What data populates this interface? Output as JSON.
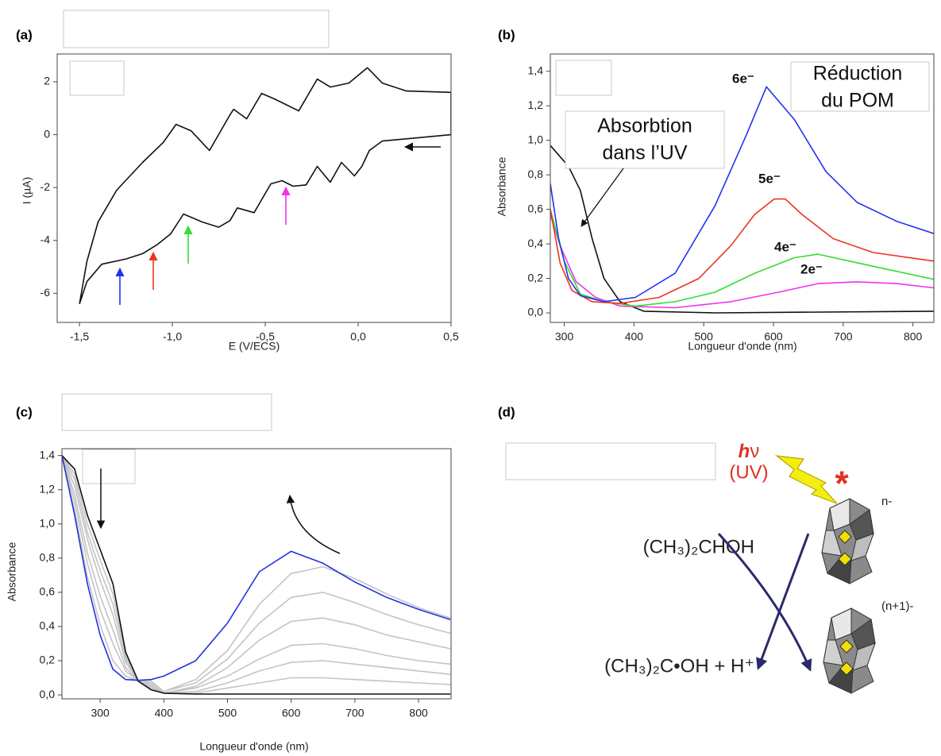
{
  "chart_data": [
    {
      "type": "line",
      "panel_label": "(a)",
      "x_label": "E (V/ECS)",
      "y_label": "I (µA)",
      "xlim": [
        -1.62,
        0.5
      ],
      "ylim": [
        -7.1,
        3.05
      ],
      "xticks": [
        {
          "value": -1.5,
          "label": "-1,5"
        },
        {
          "value": -1.0,
          "label": "-1,0"
        },
        {
          "value": -0.5,
          "label": "-0,5"
        },
        {
          "value": 0.0,
          "label": "0,0"
        },
        {
          "value": 0.5,
          "label": "0,5"
        }
      ],
      "yticks": [
        2,
        0,
        -2,
        -4,
        -6
      ],
      "series": [
        {
          "color": "#111111",
          "x": [
            -1.5,
            -1.46,
            -1.4,
            -1.3,
            -1.16,
            -1.05,
            -0.98,
            -0.9,
            -0.8,
            -0.69,
            -0.67,
            -0.6,
            -0.52,
            -0.45,
            -0.32,
            -0.22,
            -0.15,
            -0.05,
            0.05,
            0.13,
            0.26,
            0.5,
            0.5,
            0.13,
            0.06,
            0.02,
            -0.02,
            -0.09,
            -0.15,
            -0.22,
            -0.28,
            -0.35,
            -0.41,
            -0.47,
            -0.56,
            -0.65,
            -0.69,
            -0.75,
            -0.84,
            -0.94,
            -1.01,
            -1.08,
            -1.16,
            -1.25,
            -1.38,
            -1.46,
            -1.5
          ],
          "values": [
            -6.4,
            -4.8,
            -3.3,
            -2.1,
            -1.05,
            -0.3,
            0.39,
            0.15,
            -0.6,
            0.75,
            0.96,
            0.6,
            1.56,
            1.35,
            0.9,
            2.1,
            1.8,
            1.95,
            2.53,
            1.95,
            1.65,
            1.6,
            0.0,
            -0.24,
            -0.6,
            -1.2,
            -1.56,
            -1.05,
            -1.8,
            -1.2,
            -1.9,
            -1.95,
            -1.74,
            -1.86,
            -2.95,
            -2.77,
            -3.25,
            -3.5,
            -3.3,
            -3.0,
            -3.76,
            -4.15,
            -4.5,
            -4.7,
            -4.9,
            -5.56,
            -6.4
          ]
        }
      ]
    },
    {
      "type": "line",
      "panel_label": "(b)",
      "x_label": "Longueur d'onde (nm)",
      "y_label": "Absorbance",
      "xlim": [
        280,
        830
      ],
      "ylim": [
        -0.055,
        1.5
      ],
      "xticks": [
        300,
        400,
        500,
        600,
        700,
        800
      ],
      "yticks": [
        {
          "value": 0,
          "label": "0,0"
        },
        {
          "value": 0.2,
          "label": "0,2"
        },
        {
          "value": 0.4,
          "label": "0,4"
        },
        {
          "value": 0.6,
          "label": "0,6"
        },
        {
          "value": 0.8,
          "label": "0,8"
        },
        {
          "value": 1.0,
          "label": "1,0"
        },
        {
          "value": 1.2,
          "label": "1,2"
        },
        {
          "value": 1.4,
          "label": "1,4"
        }
      ],
      "annotations": [
        "6e⁻",
        "5e⁻",
        "4e⁻",
        "2e⁻"
      ],
      "callouts": [
        [
          "Absorbtion",
          "dans l’UV"
        ],
        [
          "Réduction",
          "du POM"
        ]
      ],
      "series": [
        {
          "color": "#111111",
          "x": [
            280,
            306,
            323,
            340,
            357,
            380,
            414,
            516,
            830
          ],
          "values": [
            0.97,
            0.85,
            0.71,
            0.43,
            0.2,
            0.065,
            0.01,
            0,
            0.01
          ]
        },
        {
          "color": "#ee33ee",
          "x": [
            280,
            294,
            317,
            345,
            380,
            459,
            539,
            607,
            664,
            720,
            777,
            830
          ],
          "values": [
            0.57,
            0.39,
            0.18,
            0.09,
            0.04,
            0.03,
            0.065,
            0.12,
            0.17,
            0.18,
            0.17,
            0.145
          ]
        },
        {
          "color": "#33dd33",
          "x": [
            280,
            300,
            323,
            357,
            402,
            459,
            516,
            573,
            630,
            664,
            709,
            766,
            830
          ],
          "values": [
            0.6,
            0.3,
            0.11,
            0.065,
            0.04,
            0.065,
            0.12,
            0.23,
            0.32,
            0.34,
            0.3,
            0.25,
            0.195
          ]
        },
        {
          "color": "#ee3322",
          "x": [
            280,
            294,
            311,
            340,
            380,
            436,
            493,
            539,
            573,
            601,
            617,
            641,
            686,
            743,
            830
          ],
          "values": [
            0.6,
            0.29,
            0.13,
            0.065,
            0.055,
            0.09,
            0.2,
            0.39,
            0.57,
            0.66,
            0.66,
            0.57,
            0.43,
            0.35,
            0.3
          ]
        },
        {
          "color": "#2233ee",
          "x": [
            280,
            292,
            306,
            323,
            357,
            402,
            459,
            516,
            561,
            590,
            630,
            675,
            720,
            777,
            830
          ],
          "values": [
            0.75,
            0.43,
            0.2,
            0.1,
            0.065,
            0.09,
            0.23,
            0.62,
            1.03,
            1.31,
            1.12,
            0.82,
            0.64,
            0.53,
            0.46
          ]
        }
      ]
    },
    {
      "type": "line",
      "panel_label": "(c)",
      "x_label": "Longueur d'onde (nm)",
      "y_label": "Absorbance",
      "xlim": [
        240,
        851
      ],
      "ylim": [
        -0.023,
        1.44
      ],
      "xticks": [
        300,
        400,
        500,
        600,
        700,
        800
      ],
      "yticks": [
        {
          "value": 0,
          "label": "0,0"
        },
        {
          "value": 0.2,
          "label": "0,2"
        },
        {
          "value": 0.4,
          "label": "0,4"
        },
        {
          "value": 0.6,
          "label": "0,6"
        },
        {
          "value": 0.8,
          "label": "0,8"
        },
        {
          "value": 1.0,
          "label": "1,0"
        },
        {
          "value": 1.2,
          "label": "1,2"
        },
        {
          "value": 1.4,
          "label": "1,4"
        }
      ],
      "x": [
        240,
        260,
        280,
        300,
        320,
        340,
        360,
        380,
        400,
        450,
        500,
        550,
        600,
        650,
        700,
        750,
        800,
        850
      ],
      "series": [
        {
          "color": "#c4c4c4",
          "values": [
            1.4,
            1.29,
            1.0,
            0.79,
            0.59,
            0.23,
            0.08,
            0.04,
            0.01,
            0.01,
            0.04,
            0.07,
            0.1,
            0.1,
            0.09,
            0.08,
            0.07,
            0.06
          ]
        },
        {
          "color": "#c4c4c4",
          "values": [
            1.4,
            1.26,
            0.95,
            0.73,
            0.53,
            0.21,
            0.08,
            0.04,
            0.01,
            0.02,
            0.07,
            0.14,
            0.19,
            0.2,
            0.18,
            0.16,
            0.14,
            0.12
          ]
        },
        {
          "color": "#c4c4c4",
          "values": [
            1.4,
            1.22,
            0.91,
            0.67,
            0.47,
            0.19,
            0.08,
            0.05,
            0.01,
            0.04,
            0.11,
            0.21,
            0.29,
            0.3,
            0.27,
            0.23,
            0.2,
            0.18
          ]
        },
        {
          "color": "#c4c4c4",
          "values": [
            1.4,
            1.17,
            0.83,
            0.58,
            0.38,
            0.16,
            0.08,
            0.06,
            0.01,
            0.05,
            0.16,
            0.32,
            0.43,
            0.45,
            0.41,
            0.35,
            0.31,
            0.27
          ]
        },
        {
          "color": "#c4c4c4",
          "values": [
            1.4,
            1.13,
            0.77,
            0.5,
            0.3,
            0.14,
            0.08,
            0.07,
            0.02,
            0.07,
            0.21,
            0.42,
            0.57,
            0.6,
            0.54,
            0.47,
            0.41,
            0.36
          ]
        },
        {
          "color": "#c4c4c4",
          "values": [
            1.4,
            1.08,
            0.69,
            0.41,
            0.2,
            0.11,
            0.08,
            0.08,
            0.02,
            0.09,
            0.26,
            0.53,
            0.71,
            0.75,
            0.68,
            0.59,
            0.51,
            0.45
          ]
        },
        {
          "color": "#111111",
          "values": [
            1.4,
            1.32,
            1.05,
            0.85,
            0.65,
            0.25,
            0.08,
            0.03,
            0.01,
            0.005,
            0.005,
            0.005,
            0.005,
            0.005,
            0.005,
            0.005,
            0.005,
            0.005
          ]
        },
        {
          "color": "#2233dd",
          "values": [
            1.4,
            1.05,
            0.65,
            0.35,
            0.15,
            0.09,
            0.085,
            0.09,
            0.11,
            0.2,
            0.42,
            0.72,
            0.84,
            0.77,
            0.66,
            0.57,
            0.5,
            0.44
          ]
        }
      ]
    }
  ],
  "scheme": {
    "panel_label": "(d)",
    "light_h": "h",
    "light_nu": "ν",
    "light_source": "(UV)",
    "excited": "*",
    "charge_initial": "n-",
    "reactant": "(CH₃)₂CHOH",
    "charge_reduced": "(n+1)-",
    "products": "(CH₃)₂C•OH + H⁺"
  }
}
